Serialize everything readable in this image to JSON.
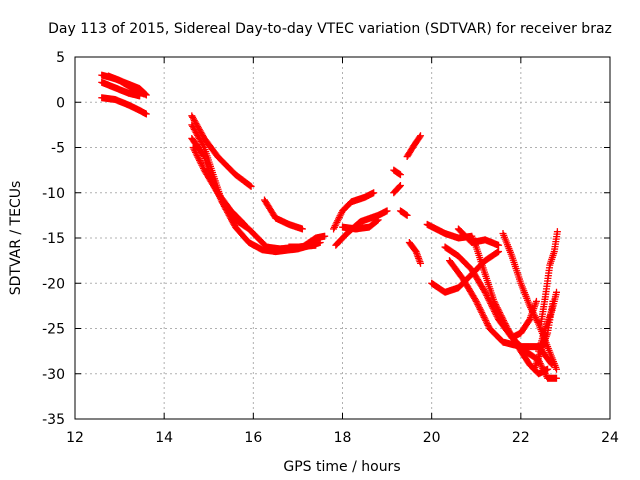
{
  "chart_data": {
    "type": "scatter",
    "title": "Day 113 of 2015, Sidereal Day-to-day VTEC variation (SDTVAR) for receiver braz",
    "xlabel": "GPS time / hours",
    "ylabel": "SDTVAR / TECUs",
    "xlim": [
      12,
      24
    ],
    "ylim": [
      -35,
      5
    ],
    "xticks": [
      12,
      14,
      16,
      18,
      20,
      22,
      24
    ],
    "yticks": [
      5,
      0,
      -5,
      -10,
      -15,
      -20,
      -25,
      -30,
      -35
    ],
    "grid": true,
    "marker": "+",
    "color": "#ff0000",
    "series": [
      {
        "tracks": [
          [
            [
              12.6,
              3.0
            ],
            [
              12.9,
              2.6
            ],
            [
              13.2,
              2.0
            ],
            [
              13.45,
              1.5
            ],
            [
              13.6,
              0.8
            ]
          ],
          [
            [
              12.6,
              2.2
            ],
            [
              12.9,
              1.6
            ],
            [
              13.2,
              1.0
            ],
            [
              13.45,
              0.7
            ]
          ],
          [
            [
              12.6,
              0.5
            ],
            [
              12.9,
              0.3
            ],
            [
              13.2,
              -0.3
            ],
            [
              13.45,
              -0.9
            ],
            [
              13.6,
              -1.3
            ]
          ],
          [
            [
              12.75,
              2.9
            ],
            [
              13.0,
              2.4
            ],
            [
              13.3,
              1.5
            ],
            [
              13.55,
              0.9
            ]
          ],
          [
            [
              14.62,
              -1.5
            ],
            [
              14.9,
              -4.0
            ],
            [
              15.2,
              -6.0
            ],
            [
              15.6,
              -8.0
            ],
            [
              15.95,
              -9.3
            ]
          ],
          [
            [
              14.62,
              -2.5
            ],
            [
              14.9,
              -5.0
            ],
            [
              15.1,
              -8.0
            ],
            [
              15.3,
              -11.0
            ],
            [
              15.6,
              -13.0
            ],
            [
              15.9,
              -14.0
            ],
            [
              16.1,
              -15.0
            ],
            [
              16.3,
              -16.0
            ],
            [
              16.6,
              -16.2
            ],
            [
              17.0,
              -16.0
            ],
            [
              17.4,
              -15.8
            ]
          ],
          [
            [
              14.62,
              -4.0
            ],
            [
              14.9,
              -6.0
            ],
            [
              15.1,
              -9.0
            ],
            [
              15.35,
              -11.5
            ],
            [
              15.6,
              -13.8
            ],
            [
              15.9,
              -15.5
            ],
            [
              16.2,
              -16.3
            ],
            [
              16.5,
              -16.5
            ],
            [
              17.0,
              -16.2
            ],
            [
              17.5,
              -15.5
            ]
          ],
          [
            [
              14.65,
              -5.0
            ],
            [
              14.9,
              -7.5
            ],
            [
              15.2,
              -10.0
            ],
            [
              15.5,
              -12.0
            ],
            [
              15.8,
              -13.5
            ]
          ],
          [
            [
              16.25,
              -10.8
            ],
            [
              16.5,
              -12.8
            ],
            [
              16.8,
              -13.5
            ],
            [
              17.1,
              -14.0
            ]
          ],
          [
            [
              16.8,
              -16.0
            ],
            [
              17.1,
              -16.0
            ],
            [
              17.4,
              -15.0
            ],
            [
              17.6,
              -14.8
            ]
          ],
          [
            [
              17.85,
              -15.8
            ],
            [
              18.1,
              -14.5
            ],
            [
              18.4,
              -13.2
            ],
            [
              18.8,
              -12.5
            ],
            [
              19.0,
              -12.0
            ]
          ],
          [
            [
              17.8,
              -14.0
            ],
            [
              18.0,
              -12.0
            ],
            [
              18.2,
              -11.0
            ],
            [
              18.5,
              -10.5
            ],
            [
              18.7,
              -10.0
            ]
          ],
          [
            [
              18.0,
              -13.8
            ],
            [
              18.3,
              -14.0
            ],
            [
              18.6,
              -13.8
            ],
            [
              18.8,
              -13.0
            ]
          ],
          [
            [
              19.15,
              -7.5
            ],
            [
              19.3,
              -8.0
            ]
          ],
          [
            [
              19.15,
              -10.0
            ],
            [
              19.3,
              -9.2
            ]
          ],
          [
            [
              19.3,
              -12.0
            ],
            [
              19.45,
              -12.5
            ]
          ],
          [
            [
              19.45,
              -6.0
            ],
            [
              19.6,
              -4.8
            ],
            [
              19.75,
              -3.7
            ]
          ],
          [
            [
              19.5,
              -15.5
            ],
            [
              19.65,
              -16.5
            ],
            [
              19.75,
              -17.8
            ]
          ],
          [
            [
              19.9,
              -13.5
            ],
            [
              20.1,
              -14.0
            ],
            [
              20.3,
              -14.5
            ],
            [
              20.6,
              -15.0
            ],
            [
              20.9,
              -14.8
            ],
            [
              21.0,
              -16.0
            ],
            [
              21.2,
              -19.0
            ],
            [
              21.4,
              -22.0
            ],
            [
              21.7,
              -25.0
            ],
            [
              22.0,
              -27.5
            ],
            [
              22.2,
              -29.0
            ],
            [
              22.4,
              -30.0
            ],
            [
              22.6,
              -29.5
            ]
          ],
          [
            [
              20.0,
              -20.0
            ],
            [
              20.3,
              -21.0
            ],
            [
              20.6,
              -20.5
            ],
            [
              20.9,
              -19.0
            ],
            [
              21.2,
              -17.5
            ],
            [
              21.5,
              -16.5
            ]
          ],
          [
            [
              20.3,
              -16.0
            ],
            [
              20.6,
              -17.0
            ],
            [
              20.9,
              -18.5
            ],
            [
              21.2,
              -21.0
            ],
            [
              21.5,
              -24.0
            ],
            [
              21.8,
              -26.0
            ],
            [
              22.1,
              -27.5
            ],
            [
              22.4,
              -28.5
            ],
            [
              22.6,
              -30.5
            ],
            [
              22.8,
              -30.5
            ]
          ],
          [
            [
              20.4,
              -17.5
            ],
            [
              20.7,
              -19.5
            ],
            [
              21.0,
              -22.0
            ],
            [
              21.3,
              -25.0
            ],
            [
              21.6,
              -26.5
            ],
            [
              22.0,
              -27.0
            ],
            [
              22.4,
              -27.0
            ],
            [
              22.7,
              -29.0
            ]
          ],
          [
            [
              20.6,
              -14.0
            ],
            [
              20.9,
              -15.5
            ],
            [
              21.2,
              -15.2
            ],
            [
              21.5,
              -15.8
            ]
          ],
          [
            [
              21.6,
              -14.5
            ],
            [
              21.8,
              -17.0
            ],
            [
              22.0,
              -20.0
            ],
            [
              22.2,
              -22.5
            ],
            [
              22.4,
              -24.5
            ],
            [
              22.6,
              -27.0
            ],
            [
              22.8,
              -29.5
            ]
          ],
          [
            [
              21.8,
              -26.0
            ],
            [
              22.0,
              -25.5
            ],
            [
              22.2,
              -24.0
            ],
            [
              22.35,
              -22.0
            ]
          ],
          [
            [
              22.3,
              -29.5
            ],
            [
              22.45,
              -27.5
            ],
            [
              22.6,
              -25.5
            ],
            [
              22.72,
              -22.0
            ]
          ],
          [
            [
              22.45,
              -24.5
            ],
            [
              22.55,
              -21.5
            ],
            [
              22.65,
              -18.0
            ],
            [
              22.75,
              -16.5
            ],
            [
              22.82,
              -14.3
            ]
          ],
          [
            [
              22.4,
              -27.5
            ],
            [
              22.55,
              -25.0
            ],
            [
              22.7,
              -23.0
            ],
            [
              22.8,
              -21.0
            ]
          ]
        ]
      }
    ]
  }
}
